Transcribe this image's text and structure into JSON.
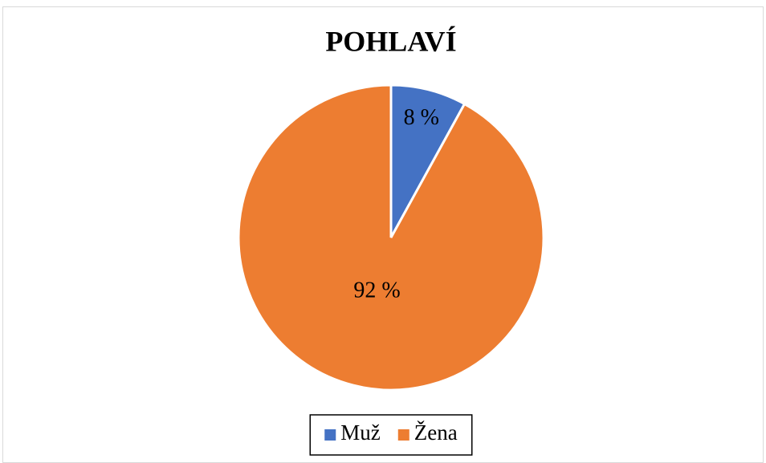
{
  "chart_data": {
    "type": "pie",
    "title": "POHLAVÍ",
    "categories": [
      "Muž",
      "Žena"
    ],
    "values": [
      8,
      92
    ],
    "value_labels": [
      "8 %",
      "92 %"
    ],
    "colors": [
      "#4472c4",
      "#ed7d31"
    ],
    "legend": "bottom"
  }
}
